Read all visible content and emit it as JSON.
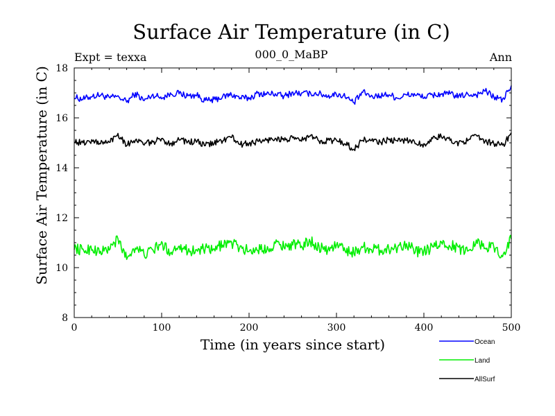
{
  "chart_data": {
    "type": "line",
    "title": "Surface Air Temperature (in C)",
    "experiment_label": "Expt = texxa",
    "subtitle": "000_0_MaBP",
    "period_label": "Ann",
    "xlabel": "Time (in years since start)",
    "ylabel": "Surface Air Temperature (in C)",
    "xlim": [
      0,
      500
    ],
    "ylim": [
      8,
      18
    ],
    "x_ticks": [
      0,
      100,
      200,
      300,
      400,
      500
    ],
    "y_ticks": [
      8,
      10,
      12,
      14,
      16,
      18
    ],
    "x_tick_labels": [
      "0",
      "100",
      "200",
      "300",
      "400",
      "500"
    ],
    "y_tick_labels": [
      "8",
      "10",
      "12",
      "14",
      "16",
      "18"
    ],
    "grid": false,
    "legend_position": "bottom-right",
    "series": [
      {
        "name": "Ocean",
        "color": "#0000ff",
        "x_step": 10,
        "values": [
          16.82,
          16.75,
          16.86,
          16.92,
          16.8,
          16.86,
          16.64,
          16.98,
          16.69,
          16.93,
          16.8,
          16.97,
          16.98,
          16.88,
          16.91,
          16.69,
          16.72,
          16.85,
          16.93,
          16.8,
          16.78,
          16.98,
          16.95,
          16.97,
          16.86,
          17.02,
          16.97,
          16.99,
          16.97,
          16.87,
          16.95,
          16.86,
          16.6,
          17.03,
          16.87,
          16.89,
          16.94,
          16.79,
          16.92,
          16.93,
          16.82,
          16.91,
          16.95,
          16.96,
          16.86,
          16.95,
          16.92,
          17.08,
          16.84,
          16.73,
          17.26
        ]
      },
      {
        "name": "Land",
        "color": "#00ee00",
        "x_step": 10,
        "values": [
          10.78,
          10.69,
          10.75,
          10.63,
          10.74,
          11.13,
          10.37,
          10.84,
          10.52,
          10.7,
          10.98,
          10.6,
          10.91,
          10.67,
          10.69,
          10.75,
          10.69,
          10.96,
          10.99,
          10.81,
          10.67,
          10.74,
          10.71,
          10.98,
          10.86,
          10.93,
          10.87,
          11.07,
          10.83,
          10.7,
          10.92,
          10.71,
          10.6,
          10.83,
          10.75,
          10.71,
          10.74,
          10.81,
          10.99,
          10.65,
          10.62,
          10.81,
          10.98,
          10.9,
          10.77,
          10.67,
          11.09,
          10.8,
          10.85,
          10.45,
          11.17
        ]
      },
      {
        "name": "AllSurf",
        "color": "#000000",
        "x_step": 10,
        "values": [
          15.05,
          14.99,
          15.09,
          14.99,
          15.02,
          15.37,
          14.92,
          15.13,
          14.94,
          15.04,
          15.14,
          14.96,
          15.15,
          15.03,
          15.04,
          14.9,
          14.99,
          15.1,
          15.23,
          14.93,
          14.98,
          15.06,
          15.09,
          15.19,
          15.11,
          15.17,
          15.1,
          15.27,
          15.08,
          15.09,
          15.1,
          14.98,
          14.73,
          15.12,
          15.08,
          15.02,
          15.12,
          15.06,
          15.13,
          14.99,
          14.94,
          15.15,
          15.26,
          15.09,
          15.0,
          15.11,
          15.27,
          15.07,
          14.99,
          14.88,
          15.38
        ]
      }
    ]
  }
}
